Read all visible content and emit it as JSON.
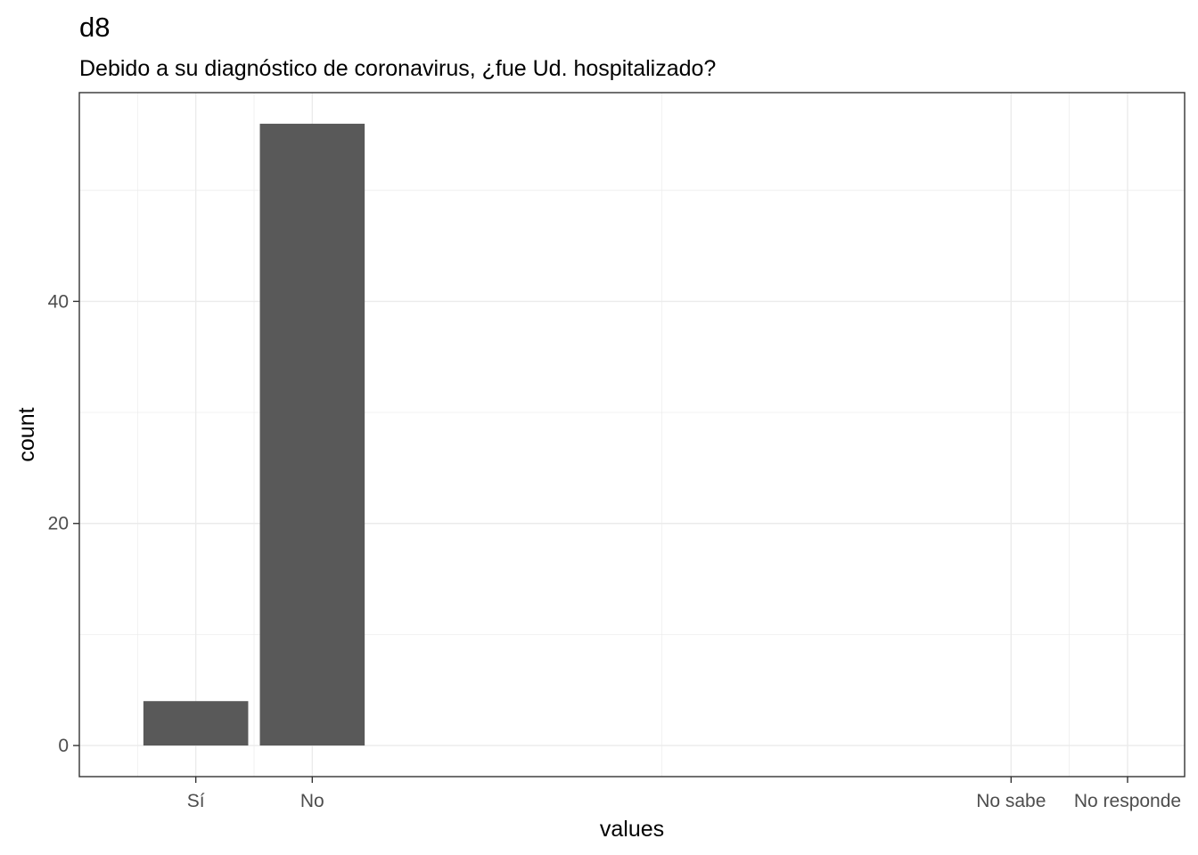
{
  "chart_data": {
    "type": "bar",
    "title": "d8",
    "subtitle": "Debido a su diagnóstico de coronavirus, ¿fue Ud. hospitalizado?",
    "xlabel": "values",
    "ylabel": "count",
    "x_ticks": [
      {
        "label": "Sí",
        "value": 1
      },
      {
        "label": "No",
        "value": 2
      },
      {
        "label": "No sabe",
        "value": 8
      },
      {
        "label": "No responde",
        "value": 9
      }
    ],
    "bars": [
      {
        "category": "Sí",
        "x": 1,
        "value": 4
      },
      {
        "category": "No",
        "x": 2,
        "value": 56
      }
    ],
    "xlim": [
      0.0,
      9.49
    ],
    "ylim": [
      -2.8,
      58.8
    ],
    "y_ticks": [
      0,
      20,
      40
    ],
    "grid": true,
    "legend": "none"
  }
}
